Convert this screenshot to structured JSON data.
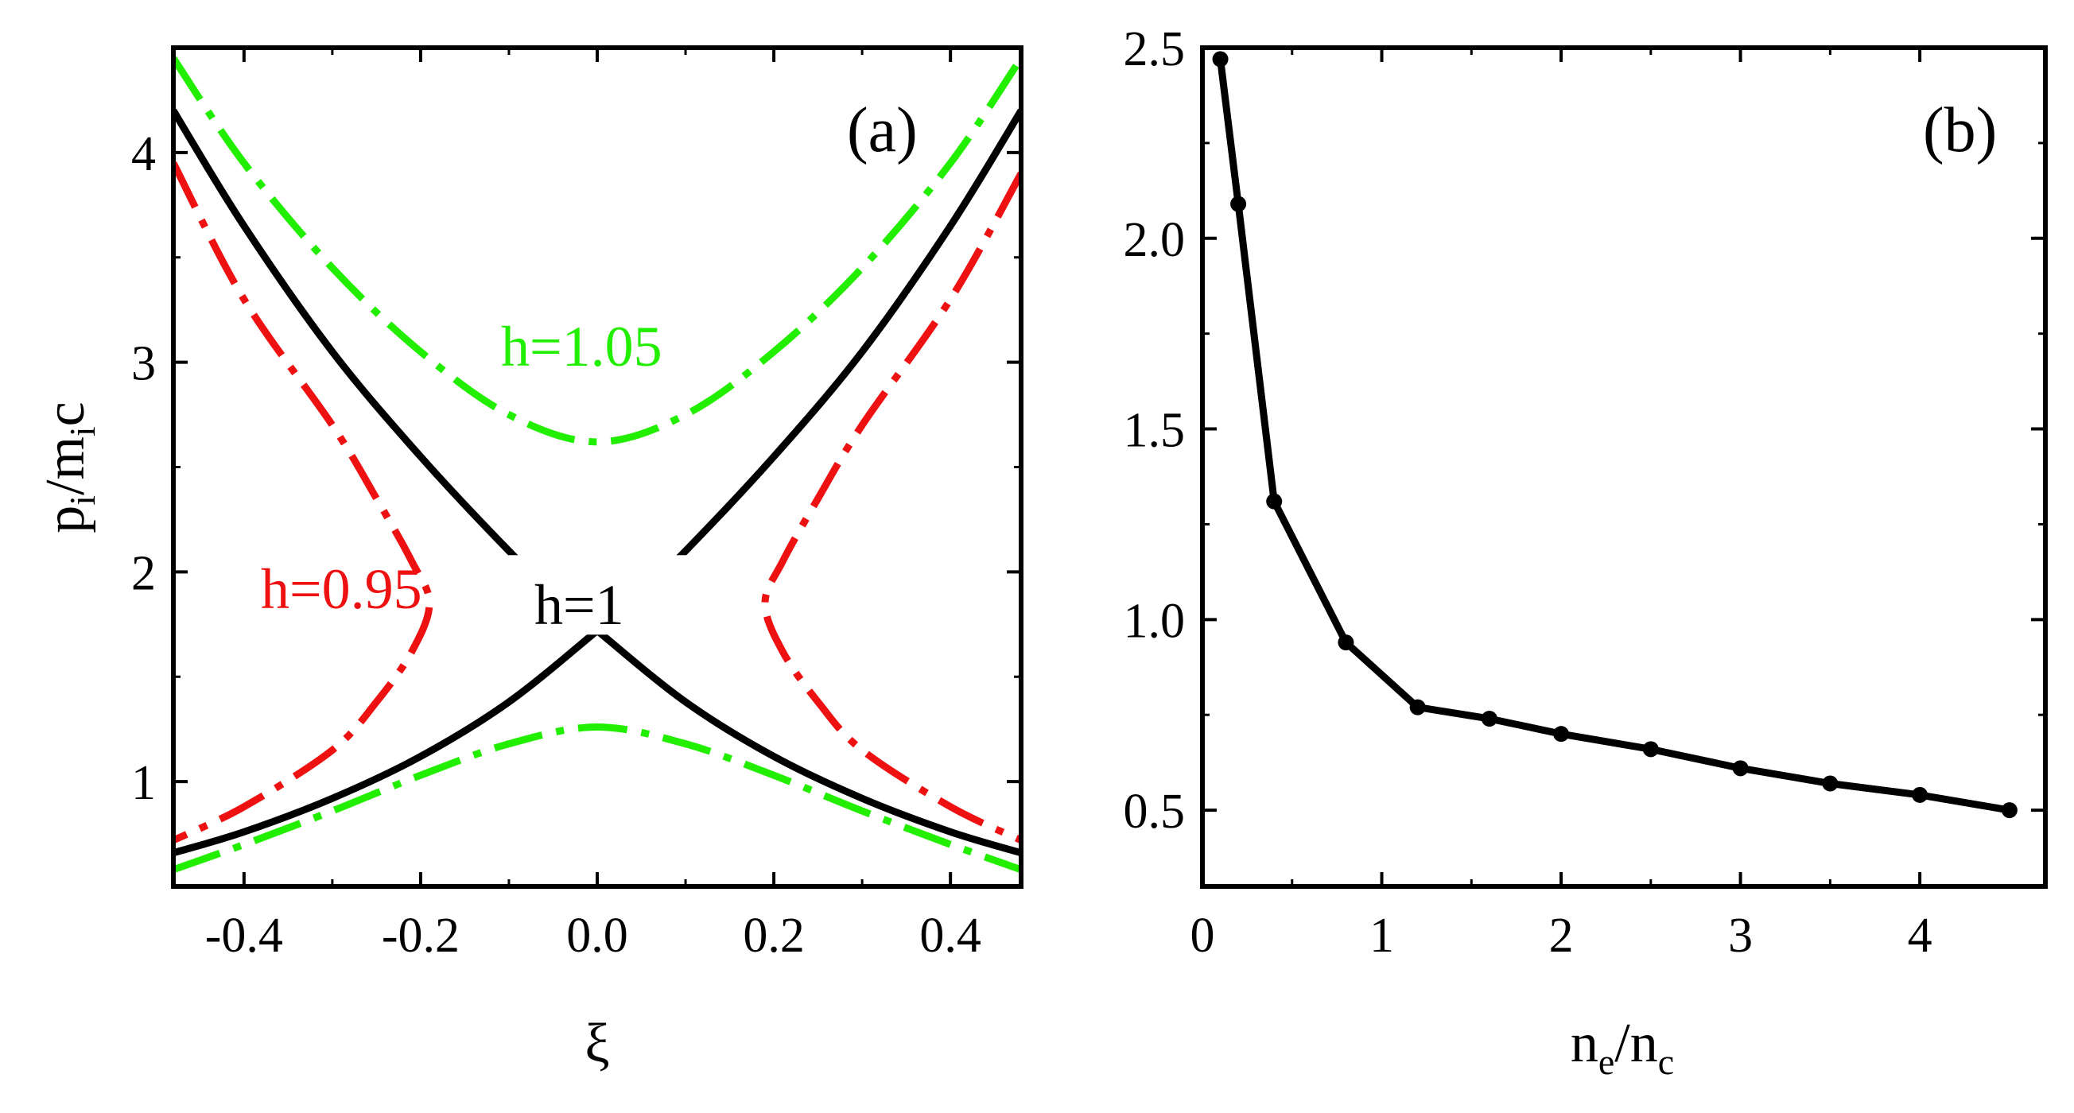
{
  "chart_data": [
    {
      "panel": "(a)",
      "type": "line",
      "xlabel": "ξ",
      "ylabel": {
        "base": "p",
        "sub1": "i",
        "mid": "/m",
        "sub2": "i",
        "tail": "c"
      },
      "xlim": [
        -0.48,
        0.48
      ],
      "ylim": [
        0.5,
        4.5
      ],
      "xticks": [
        -0.4,
        -0.2,
        0.0,
        0.2,
        0.4
      ],
      "xtick_labels": [
        "-0.4",
        "-0.2",
        "0.0",
        "0.2",
        "0.4"
      ],
      "yticks": [
        1,
        2,
        3,
        4
      ],
      "ytick_labels": [
        "1",
        "2",
        "3",
        "4"
      ],
      "series": [
        {
          "name": "h=1.05 upper",
          "label": "h=1.05",
          "color": "#22ee00",
          "style": "dashdot",
          "x": [
            -0.48,
            -0.4,
            -0.3,
            -0.2,
            -0.1,
            0.0,
            0.1,
            0.2,
            0.3,
            0.4,
            0.48
          ],
          "y": [
            4.45,
            3.95,
            3.45,
            3.05,
            2.75,
            2.62,
            2.75,
            3.05,
            3.45,
            3.95,
            4.45
          ]
        },
        {
          "name": "h=1.05 lower",
          "color": "#22ee00",
          "style": "dashdot",
          "x": [
            -0.48,
            -0.4,
            -0.3,
            -0.2,
            -0.1,
            0.0,
            0.1,
            0.2,
            0.3,
            0.4,
            0.48
          ],
          "y": [
            0.58,
            0.7,
            0.86,
            1.03,
            1.18,
            1.26,
            1.18,
            1.03,
            0.86,
            0.7,
            0.58
          ]
        },
        {
          "name": "h=1 branch A",
          "label": "h=1",
          "color": "#000000",
          "style": "solid",
          "x": [
            -0.48,
            -0.4,
            -0.3,
            -0.2,
            -0.1,
            -0.05,
            0.0,
            0.1,
            0.2,
            0.3,
            0.4,
            0.48
          ],
          "y": [
            4.2,
            3.65,
            3.05,
            2.55,
            2.1,
            1.9,
            1.72,
            1.38,
            1.12,
            0.92,
            0.76,
            0.66
          ]
        },
        {
          "name": "h=1 branch B",
          "color": "#000000",
          "style": "solid",
          "x": [
            -0.48,
            -0.4,
            -0.3,
            -0.2,
            -0.1,
            0.0,
            0.05,
            0.1,
            0.2,
            0.3,
            0.4,
            0.48
          ],
          "y": [
            0.66,
            0.76,
            0.92,
            1.12,
            1.38,
            1.72,
            1.9,
            2.1,
            2.55,
            3.05,
            3.65,
            4.2
          ]
        },
        {
          "name": "h=0.95 left",
          "label": "h=0.95",
          "color": "#ee1111",
          "style": "dashdot",
          "x": [
            -0.48,
            -0.4,
            -0.3,
            -0.25,
            -0.21,
            -0.19,
            -0.21,
            -0.25,
            -0.3,
            -0.4,
            -0.48
          ],
          "y": [
            3.95,
            3.3,
            2.7,
            2.35,
            2.05,
            1.85,
            1.62,
            1.38,
            1.15,
            0.88,
            0.72
          ]
        },
        {
          "name": "h=0.95 right",
          "color": "#ee1111",
          "style": "dashdot",
          "x": [
            0.48,
            0.4,
            0.3,
            0.25,
            0.21,
            0.19,
            0.21,
            0.25,
            0.3,
            0.4,
            0.48
          ],
          "y": [
            3.9,
            3.3,
            2.7,
            2.35,
            2.05,
            1.85,
            1.62,
            1.38,
            1.15,
            0.88,
            0.72
          ]
        }
      ]
    },
    {
      "panel": "(b)",
      "type": "line",
      "xlabel": {
        "base": "n",
        "sub1": "e",
        "mid": "/n",
        "sub2": "c"
      },
      "ylabel": "",
      "xlim": [
        0,
        4.7
      ],
      "ylim": [
        0.3,
        2.5
      ],
      "xticks": [
        0,
        1,
        2,
        3,
        4
      ],
      "xtick_labels": [
        "0",
        "1",
        "2",
        "3",
        "4"
      ],
      "yticks": [
        0.5,
        1.0,
        1.5,
        2.0,
        2.5
      ],
      "ytick_labels": [
        "0.5",
        "1.0",
        "1.5",
        "2.0",
        "2.5"
      ],
      "series": [
        {
          "name": "threshold",
          "color": "#000000",
          "style": "solid-markers",
          "x": [
            0.1,
            0.2,
            0.4,
            0.8,
            1.2,
            1.6,
            2.0,
            2.5,
            3.0,
            3.5,
            4.0,
            4.5
          ],
          "y": [
            2.47,
            2.09,
            1.31,
            0.94,
            0.77,
            0.74,
            0.7,
            0.66,
            0.61,
            0.57,
            0.54,
            0.5
          ]
        }
      ]
    }
  ]
}
